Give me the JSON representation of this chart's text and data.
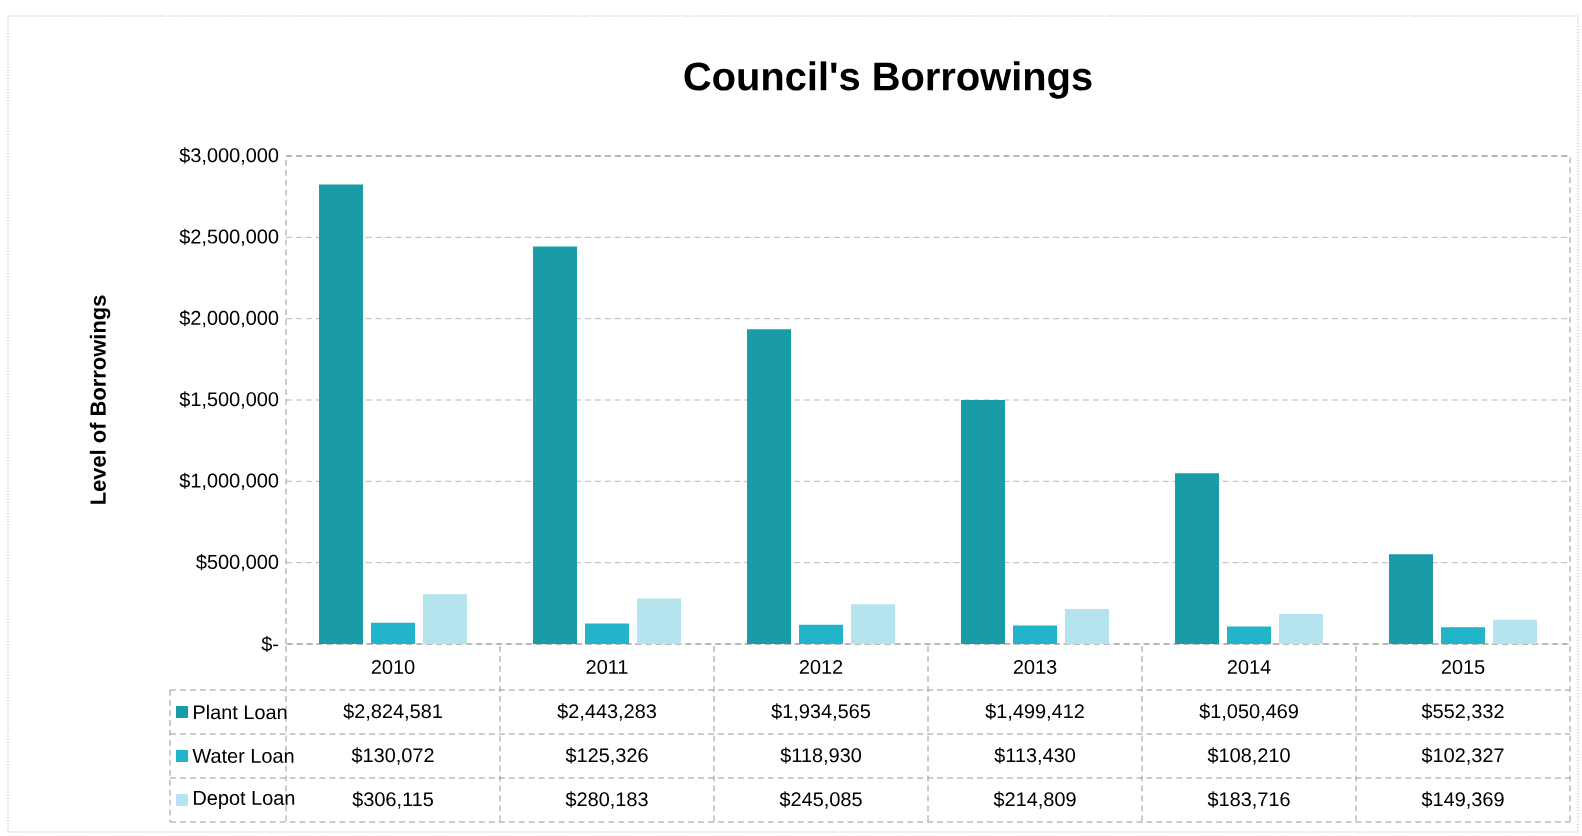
{
  "chart_data": {
    "type": "bar",
    "title": "Council's Borrowings",
    "ylabel": "Level of Borrowings",
    "categories": [
      "2010",
      "2011",
      "2012",
      "2013",
      "2014",
      "2015"
    ],
    "series": [
      {
        "name": "Plant Loan",
        "color": "#1a9ba8",
        "values": [
          2824581,
          2443283,
          1934565,
          1499412,
          1050469,
          552332
        ],
        "value_labels": [
          "$2,824,581",
          "$2,443,283",
          "$1,934,565",
          "$1,499,412",
          "$1,050,469",
          "$552,332"
        ]
      },
      {
        "name": "Water Loan",
        "color": "#22b4c8",
        "values": [
          130072,
          125326,
          118930,
          113430,
          108210,
          102327
        ],
        "value_labels": [
          "$130,072",
          "$125,326",
          "$118,930",
          "$113,430",
          "$108,210",
          "$102,327"
        ]
      },
      {
        "name": "Depot Loan",
        "color": "#b5e3ee",
        "values": [
          306115,
          280183,
          245085,
          214809,
          183716,
          149369
        ],
        "value_labels": [
          "$306,115",
          "$280,183",
          "$245,085",
          "$214,809",
          "$183,716",
          "$149,369"
        ]
      }
    ],
    "ylim": [
      0,
      3000000
    ],
    "yticks": [
      {
        "value": 0,
        "label": "$-"
      },
      {
        "value": 500000,
        "label": "$500,000"
      },
      {
        "value": 1000000,
        "label": "$1,000,000"
      },
      {
        "value": 1500000,
        "label": "$1,500,000"
      },
      {
        "value": 2000000,
        "label": "$2,000,000"
      },
      {
        "value": 2500000,
        "label": "$2,500,000"
      },
      {
        "value": 3000000,
        "label": "$3,000,000"
      }
    ],
    "grid": "y",
    "legend": "bottom"
  }
}
